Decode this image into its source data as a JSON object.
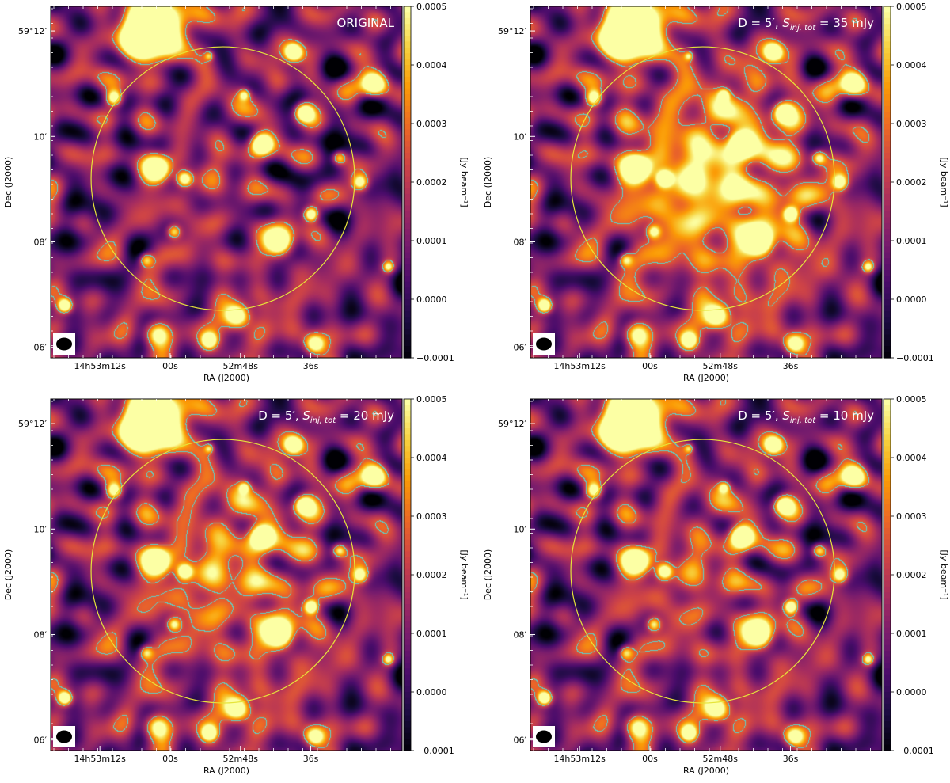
{
  "colors": {
    "cmap": [
      "#000004",
      "#1b0c41",
      "#4a0c6b",
      "#781c6d",
      "#a52c60",
      "#cf4446",
      "#ed6925",
      "#fb9b06",
      "#f7d13d",
      "#fcffa4"
    ],
    "contour": "#5fd0c8",
    "circle": "#e6e43a"
  },
  "axes": {
    "xlabel": "RA (J2000)",
    "ylabel": "Dec (J2000)",
    "xticks": [
      "14h53m12s",
      "00s",
      "52m48s",
      "36s"
    ],
    "yticks": [
      "59°12′",
      "10′",
      "08′",
      "06′"
    ],
    "colorbar_label": "[Jy beam⁻¹]",
    "colorbar_ticks": [
      "0.0005",
      "0.0004",
      "0.0003",
      "0.0002",
      "0.0001",
      "0.0000",
      "−0.0001"
    ],
    "colorbar_range": [
      -0.0001,
      0.0005
    ]
  },
  "panels": [
    {
      "label_plain": "ORIGINAL",
      "label_d": "",
      "label_s_main": "",
      "label_s_sub": "",
      "label_val": "",
      "injected_strength": 0.0
    },
    {
      "label_plain": "",
      "label_d": "D = 5′, ",
      "label_s_main": "S",
      "label_s_sub": "inj, tot",
      "label_val": " = 35 mJy",
      "injected_strength": 1.0
    },
    {
      "label_plain": "",
      "label_d": "D = 5′, ",
      "label_s_main": "S",
      "label_s_sub": "inj, tot",
      "label_val": " = 20 mJy",
      "injected_strength": 0.55
    },
    {
      "label_plain": "",
      "label_d": "D = 5′, ",
      "label_s_main": "S",
      "label_s_sub": "inj, tot",
      "label_val": " = 10 mJy",
      "injected_strength": 0.25
    }
  ]
}
